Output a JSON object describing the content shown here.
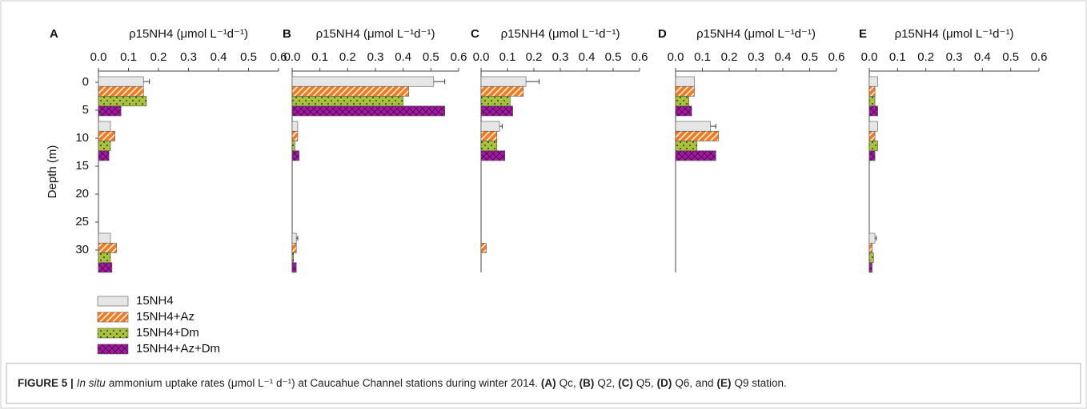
{
  "chart_data": [
    {
      "type": "bar",
      "panel_label": "A",
      "xlabel": "ρ15NH4 (μmol L⁻¹d⁻¹)",
      "ylabel": "Depth (m)",
      "y": [
        2.5,
        10.5,
        30.5
      ],
      "xlim": [
        0,
        0.6
      ],
      "ylim": [
        -2,
        34
      ],
      "y_inverted": true,
      "xticks": [
        {
          "value": 0,
          "label": "0.0"
        },
        {
          "value": 0.1,
          "label": "0.1"
        },
        {
          "value": 0.2,
          "label": "0.2"
        },
        {
          "value": 0.3,
          "label": "0.3"
        },
        {
          "value": 0.4,
          "label": "0.4"
        },
        {
          "value": 0.5,
          "label": "0.5"
        },
        {
          "value": 0.6,
          "label": "0.6"
        }
      ],
      "yticks": [
        0,
        5,
        10,
        15,
        20,
        25,
        30
      ],
      "series": [
        {
          "name": "15NH4",
          "color": "#e6e6e6",
          "pattern": "solid",
          "values": [
            0.15,
            0.04,
            0.04
          ],
          "errors": [
            0.02,
            null,
            null
          ]
        },
        {
          "name": "15NH4+Az",
          "color": "#f47c20",
          "pattern": "hatch",
          "values": [
            0.15,
            0.055,
            0.06
          ]
        },
        {
          "name": "15NH4+Dm",
          "color": "#a8c23a",
          "pattern": "dots",
          "values": [
            0.16,
            0.04,
            0.04
          ]
        },
        {
          "name": "15NH4+Az+Dm",
          "color": "#b010b0",
          "pattern": "crosshatch",
          "values": [
            0.075,
            0.035,
            0.045
          ]
        }
      ]
    },
    {
      "type": "bar",
      "panel_label": "B",
      "xlabel": "ρ15NH4 (μmol L⁻¹d⁻¹)",
      "y": [
        2.5,
        10.5,
        30.5
      ],
      "xlim": [
        0,
        0.6
      ],
      "ylim": [
        -2,
        34
      ],
      "y_inverted": true,
      "xticks": [
        {
          "value": 0,
          "label": "0.0"
        },
        {
          "value": 0.1,
          "label": "0.1"
        },
        {
          "value": 0.2,
          "label": "0.2"
        },
        {
          "value": 0.3,
          "label": "0.3"
        },
        {
          "value": 0.4,
          "label": "0.4"
        },
        {
          "value": 0.5,
          "label": "0.5"
        },
        {
          "value": 0.6,
          "label": "0.6"
        }
      ],
      "series": [
        {
          "values": [
            0.51,
            0.02,
            0.015
          ],
          "errors": [
            0.04,
            null,
            0.005
          ]
        },
        {
          "values": [
            0.42,
            0.02,
            0.015
          ]
        },
        {
          "values": [
            0.4,
            0.01,
            0.005
          ]
        },
        {
          "values": [
            0.55,
            0.025,
            0.015
          ]
        }
      ]
    },
    {
      "type": "bar",
      "panel_label": "C",
      "xlabel": "ρ15NH4 (μmol L⁻¹d⁻¹)",
      "y": [
        2.5,
        10.5,
        30.5
      ],
      "xlim": [
        0,
        0.6
      ],
      "ylim": [
        -2,
        34
      ],
      "y_inverted": true,
      "xticks": [
        {
          "value": 0,
          "label": "0.0"
        },
        {
          "value": 0.1,
          "label": "0.1"
        },
        {
          "value": 0.2,
          "label": "0.2"
        },
        {
          "value": 0.3,
          "label": "0.3"
        },
        {
          "value": 0.4,
          "label": "0.4"
        },
        {
          "value": 0.5,
          "label": "0.5"
        },
        {
          "value": 0.6,
          "label": "0.6"
        }
      ],
      "series": [
        {
          "values": [
            0.17,
            0.07,
            0
          ],
          "errors": [
            0.05,
            0.01,
            null
          ]
        },
        {
          "values": [
            0.16,
            0.06,
            0.02
          ]
        },
        {
          "values": [
            0.11,
            0.06,
            0
          ]
        },
        {
          "values": [
            0.12,
            0.09,
            0
          ]
        }
      ]
    },
    {
      "type": "bar",
      "panel_label": "D",
      "xlabel": "ρ15NH4 (μmol L⁻¹d⁻¹)",
      "y": [
        2.5,
        10.5,
        30.5
      ],
      "xlim": [
        0,
        0.6
      ],
      "ylim": [
        -2,
        34
      ],
      "y_inverted": true,
      "xticks": [
        {
          "value": 0,
          "label": "0.0"
        },
        {
          "value": 0.1,
          "label": "0.1"
        },
        {
          "value": 0.2,
          "label": "0.2"
        },
        {
          "value": 0.3,
          "label": "0.3"
        },
        {
          "value": 0.4,
          "label": "0.4"
        },
        {
          "value": 0.5,
          "label": "0.5"
        },
        {
          "value": 0.6,
          "label": "0.6"
        }
      ],
      "series": [
        {
          "values": [
            0.07,
            0.13,
            0
          ],
          "errors": [
            null,
            0.02,
            null
          ]
        },
        {
          "values": [
            0.07,
            0.16,
            0
          ]
        },
        {
          "values": [
            0.05,
            0.08,
            0
          ]
        },
        {
          "values": [
            0.06,
            0.15,
            0
          ]
        }
      ]
    },
    {
      "type": "bar",
      "panel_label": "E",
      "xlabel": "ρ15NH4 (μmol L⁻¹d⁻¹)",
      "y": [
        2.5,
        10.5,
        30.5
      ],
      "xlim": [
        0,
        0.6
      ],
      "ylim": [
        -2,
        34
      ],
      "y_inverted": true,
      "xticks": [
        {
          "value": 0,
          "label": "0.0"
        },
        {
          "value": 0.1,
          "label": "0.1"
        },
        {
          "value": 0.2,
          "label": "0.2"
        },
        {
          "value": 0.3,
          "label": "0.3"
        },
        {
          "value": 0.4,
          "label": "0.4"
        },
        {
          "value": 0.5,
          "label": "0.5"
        },
        {
          "value": 0.6,
          "label": "0.6"
        }
      ],
      "series": [
        {
          "values": [
            0.03,
            0.03,
            0.02
          ],
          "errors": [
            null,
            null,
            0.005
          ]
        },
        {
          "values": [
            0.02,
            0.02,
            0.01
          ]
        },
        {
          "values": [
            0.02,
            0.03,
            0.015
          ]
        },
        {
          "values": [
            0.03,
            0.02,
            0.01
          ]
        }
      ]
    }
  ],
  "caption": [
    "FIGURE 5 |",
    "In situ",
    "ammonium uptake rates (μmol L⁻¹ d⁻¹) at Caucahue Channel stations during winter 2014.",
    "(A)",
    "Qc,",
    "(B)",
    "Q2,",
    "(C)",
    "Q5,",
    "(D)",
    "Q6, and",
    "(E)",
    "Q9 station."
  ]
}
